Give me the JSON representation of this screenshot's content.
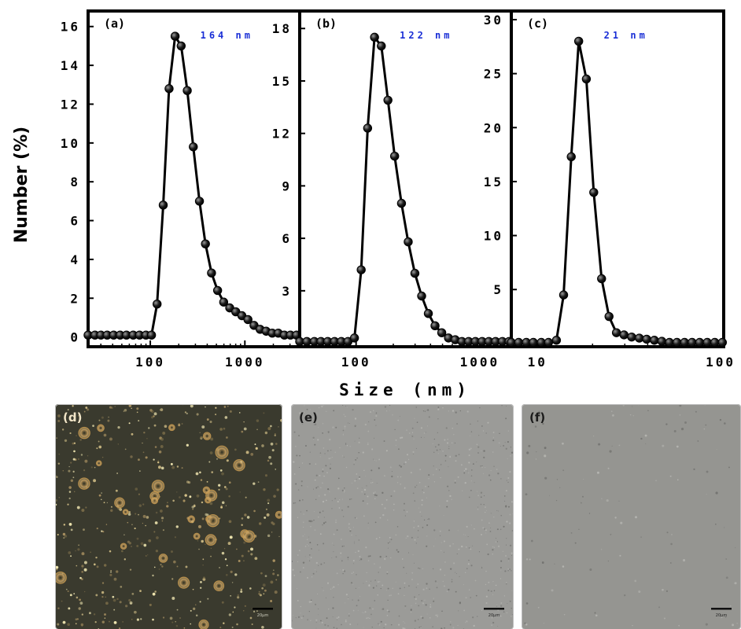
{
  "figure": {
    "ylabel": "Number (%)",
    "xlabel": "Size (nm)"
  },
  "chart_data": [
    {
      "type": "line",
      "panel": "(a)",
      "annotation": "164 nm",
      "xscale": "log",
      "xlim": [
        22,
        3800
      ],
      "ylim": [
        -0.5,
        16.8
      ],
      "yticks": [
        0,
        2,
        4,
        6,
        8,
        10,
        12,
        14,
        16
      ],
      "ytick_labels": [
        "0",
        "2",
        "4",
        "6",
        "8",
        "10",
        "12",
        "14",
        "16"
      ],
      "xticks": [
        100,
        1000
      ],
      "xtick_labels": [
        "100",
        "1000"
      ],
      "grid": false,
      "series": [
        {
          "x": [
            22,
            26,
            30,
            35,
            41,
            48,
            56,
            66,
            77,
            90,
            103,
            118,
            137,
            158,
            183,
            212,
            246,
            285,
            331,
            383,
            444,
            515,
            597,
            692,
            802,
            930,
            1078,
            1250,
            1449,
            1680,
            1948,
            2258,
            2618,
            3035,
            3519
          ],
          "y": [
            0.1,
            0.1,
            0.1,
            0.1,
            0.1,
            0.1,
            0.1,
            0.1,
            0.1,
            0.1,
            0.1,
            1.7,
            6.8,
            12.8,
            15.5,
            15.0,
            12.7,
            9.8,
            7.0,
            4.8,
            3.3,
            2.4,
            1.8,
            1.5,
            1.3,
            1.1,
            0.9,
            0.6,
            0.4,
            0.3,
            0.2,
            0.2,
            0.1,
            0.1,
            0.1
          ]
        }
      ]
    },
    {
      "type": "line",
      "panel": "(b)",
      "annotation": "122 nm",
      "xscale": "log",
      "xlim": [
        35,
        1800
      ],
      "ylim": [
        -0.2,
        19.0
      ],
      "yticks": [
        3,
        6,
        9,
        12,
        15,
        18
      ],
      "ytick_labels": [
        "3",
        "6",
        "9",
        "12",
        "15",
        "18"
      ],
      "xticks": [
        100,
        1000
      ],
      "xtick_labels": [
        "100",
        "1000"
      ],
      "grid": false,
      "series": [
        {
          "x": [
            35,
            40,
            46,
            52,
            59,
            67,
            76,
            86,
            97,
            110,
            124,
            141,
            160,
            181,
            205,
            233,
            264,
            299,
            339,
            384,
            435,
            493,
            559,
            634,
            718,
            814,
            923,
            1046,
            1186,
            1344,
            1524,
            1727
          ],
          "y": [
            0.1,
            0.1,
            0.1,
            0.1,
            0.1,
            0.1,
            0.1,
            0.1,
            0.3,
            4.2,
            12.3,
            17.5,
            17.0,
            13.9,
            10.7,
            8.0,
            5.8,
            4.0,
            2.7,
            1.7,
            1.0,
            0.6,
            0.3,
            0.2,
            0.1,
            0.1,
            0.1,
            0.1,
            0.1,
            0.1,
            0.1,
            0.1
          ]
        }
      ]
    },
    {
      "type": "line",
      "panel": "(c)",
      "annotation": "21 nm",
      "xscale": "log",
      "xlim": [
        7.2,
        104
      ],
      "ylim": [
        -0.3,
        30.8
      ],
      "yticks": [
        5,
        10,
        15,
        20,
        25,
        30
      ],
      "ytick_labels": [
        "5",
        "10",
        "15",
        "20",
        "25",
        "30"
      ],
      "xticks": [
        10,
        100
      ],
      "xtick_labels": [
        "10",
        "100"
      ],
      "grid": false,
      "series": [
        {
          "x": [
            7.2,
            7.9,
            8.7,
            9.5,
            10.5,
            11.5,
            12.7,
            13.9,
            15.3,
            16.8,
            18.5,
            20.3,
            22.4,
            24.6,
            27.0,
            29.7,
            32.7,
            36.0,
            39.5,
            43.5,
            47.8,
            52.6,
            57.8,
            63.6,
            69.9,
            76.9,
            84.6,
            93.0,
            102.3
          ],
          "y": [
            0.1,
            0.1,
            0.1,
            0.1,
            0.1,
            0.1,
            0.3,
            4.5,
            17.3,
            28.0,
            24.5,
            14.0,
            6.0,
            2.5,
            1.0,
            0.8,
            0.6,
            0.5,
            0.4,
            0.3,
            0.2,
            0.1,
            0.1,
            0.1,
            0.1,
            0.1,
            0.1,
            0.1,
            0.1
          ]
        }
      ]
    }
  ],
  "images": [
    {
      "label": "(d)",
      "scale_text": "20µm",
      "label_color": "#f2e6c8",
      "background": "#3a3a2e"
    },
    {
      "label": "(e)",
      "scale_text": "20µm",
      "label_color": "#1a1a1a",
      "background": "#9b9b98"
    },
    {
      "label": "(f)",
      "scale_text": "20µm",
      "label_color": "#1a1a1a",
      "background": "#959591"
    }
  ]
}
